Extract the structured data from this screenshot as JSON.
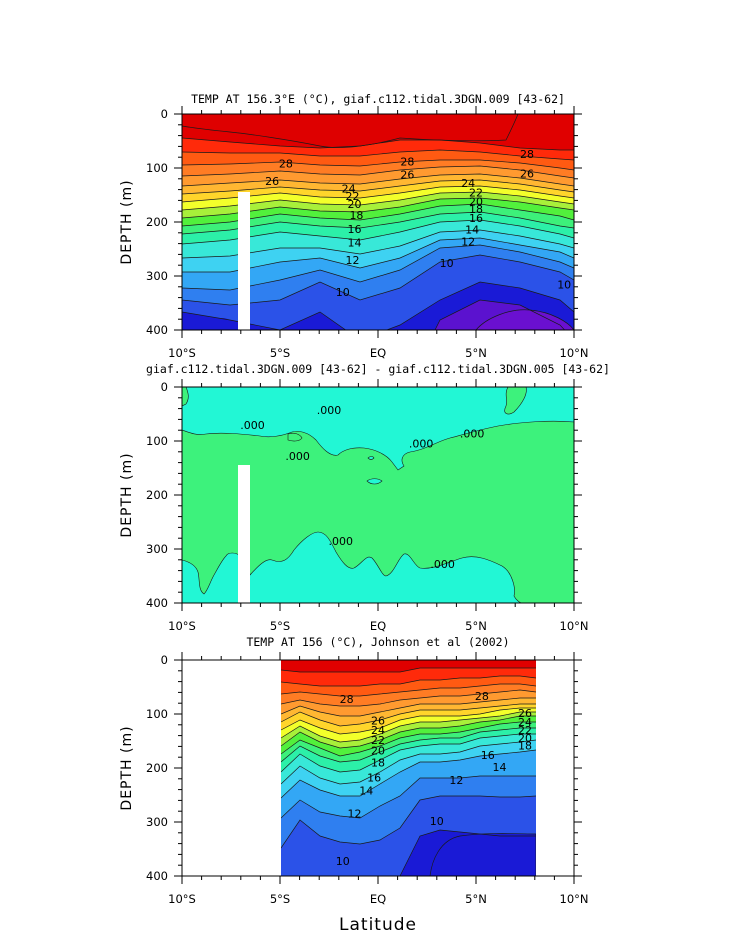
{
  "chart_data": [
    {
      "type": "contour",
      "title": "TEMP AT 156.3°E (°C), giaf.c112.tidal.3DGN.009 [43-62]",
      "ylabel": "DEPTH (m)",
      "xticks": [
        "10°S",
        "5°S",
        "EQ",
        "5°N",
        "10°N"
      ],
      "yticks": [
        "0",
        "100",
        "200",
        "300",
        "400"
      ],
      "xlim": [
        -10,
        10
      ],
      "ylim": [
        0,
        400
      ],
      "contour_labels": [
        {
          "text": "28",
          "lat": -4.7,
          "depth": 92
        },
        {
          "text": "26",
          "lat": -5.4,
          "depth": 124
        },
        {
          "text": "28",
          "lat": 1.5,
          "depth": 88
        },
        {
          "text": "26",
          "lat": 1.5,
          "depth": 112
        },
        {
          "text": "28",
          "lat": 7.6,
          "depth": 74
        },
        {
          "text": "26",
          "lat": 7.6,
          "depth": 110
        },
        {
          "text": "24",
          "lat": -1.5,
          "depth": 138
        },
        {
          "text": "22",
          "lat": -1.3,
          "depth": 152
        },
        {
          "text": "20",
          "lat": -1.2,
          "depth": 167
        },
        {
          "text": "18",
          "lat": -1.1,
          "depth": 187
        },
        {
          "text": "16",
          "lat": -1.2,
          "depth": 213
        },
        {
          "text": "14",
          "lat": -1.2,
          "depth": 238
        },
        {
          "text": "12",
          "lat": -1.3,
          "depth": 270
        },
        {
          "text": "24",
          "lat": 4.6,
          "depth": 128
        },
        {
          "text": "22",
          "lat": 5.0,
          "depth": 145
        },
        {
          "text": "20",
          "lat": 5.0,
          "depth": 162
        },
        {
          "text": "18",
          "lat": 5.0,
          "depth": 176
        },
        {
          "text": "16",
          "lat": 5.0,
          "depth": 193
        },
        {
          "text": "14",
          "lat": 4.8,
          "depth": 214
        },
        {
          "text": "12",
          "lat": 4.6,
          "depth": 236
        },
        {
          "text": "10",
          "lat": 3.5,
          "depth": 276
        },
        {
          "text": "10",
          "lat": -1.8,
          "depth": 330
        },
        {
          "text": "10",
          "lat": 9.5,
          "depth": 316
        }
      ]
    },
    {
      "type": "contour",
      "title": "giaf.c112.tidal.3DGN.009 [43-62] - giaf.c112.tidal.3DGN.005 [43-62]",
      "ylabel": "DEPTH (m)",
      "xticks": [
        "10°S",
        "5°S",
        "EQ",
        "5°N",
        "10°N"
      ],
      "yticks": [
        "0",
        "100",
        "200",
        "300",
        "400"
      ],
      "xlim": [
        -10,
        10
      ],
      "ylim": [
        0,
        400
      ],
      "contour_labels": [
        {
          "text": ".000",
          "lat": -6.4,
          "depth": 70
        },
        {
          "text": ".000",
          "lat": -2.5,
          "depth": 43
        },
        {
          "text": ".000",
          "lat": -4.1,
          "depth": 128
        },
        {
          "text": ".000",
          "lat": 2.2,
          "depth": 105
        },
        {
          "text": ".000",
          "lat": 4.8,
          "depth": 86
        },
        {
          "text": ".000",
          "lat": -1.9,
          "depth": 285
        },
        {
          "text": ".000",
          "lat": 3.3,
          "depth": 328
        }
      ]
    },
    {
      "type": "contour",
      "title": "TEMP AT 156 (°C), Johnson et al (2002)",
      "ylabel": "DEPTH (m)",
      "xlabel": "Latitude",
      "xticks": [
        "10°S",
        "5°S",
        "EQ",
        "5°N",
        "10°N"
      ],
      "yticks": [
        "0",
        "100",
        "200",
        "300",
        "400"
      ],
      "xlim": [
        -10,
        10
      ],
      "ylim": [
        0,
        400
      ],
      "data_range_lat": [
        -5,
        8
      ],
      "contour_labels": [
        {
          "text": "28",
          "lat": -1.6,
          "depth": 72
        },
        {
          "text": "28",
          "lat": 5.3,
          "depth": 67
        },
        {
          "text": "26",
          "lat": 0.0,
          "depth": 112
        },
        {
          "text": "24",
          "lat": 0.0,
          "depth": 130
        },
        {
          "text": "22",
          "lat": 0.0,
          "depth": 148
        },
        {
          "text": "20",
          "lat": 0.0,
          "depth": 168
        },
        {
          "text": "18",
          "lat": 0.0,
          "depth": 190
        },
        {
          "text": "16",
          "lat": -0.2,
          "depth": 218
        },
        {
          "text": "14",
          "lat": -0.6,
          "depth": 242
        },
        {
          "text": "12",
          "lat": -1.2,
          "depth": 284
        },
        {
          "text": "12",
          "lat": 4.0,
          "depth": 222
        },
        {
          "text": "14",
          "lat": 6.2,
          "depth": 198
        },
        {
          "text": "16",
          "lat": 5.6,
          "depth": 176
        },
        {
          "text": "10",
          "lat": 3.0,
          "depth": 298
        },
        {
          "text": "10",
          "lat": -1.8,
          "depth": 372
        },
        {
          "text": "26",
          "lat": 7.5,
          "depth": 98
        },
        {
          "text": "24",
          "lat": 7.5,
          "depth": 115
        },
        {
          "text": "22",
          "lat": 7.5,
          "depth": 130
        },
        {
          "text": "20",
          "lat": 7.5,
          "depth": 144
        },
        {
          "text": "18",
          "lat": 7.5,
          "depth": 158
        }
      ]
    }
  ],
  "colors": {
    "t10": "#5b12cf",
    "t9": "#1a1ad6",
    "t8": "#2b52e8",
    "t7": "#2f7ff0",
    "t6": "#33a7f5",
    "t5": "#3ed2f2",
    "t4": "#38e8d8",
    "t3": "#2cf0a8",
    "t2": "#3df07a",
    "t1": "#52f03c",
    "t0": "#a8f03a",
    "w0": "#f3ff2b",
    "w1": "#ffd52b",
    "w2": "#ffb732",
    "w3": "#ff9a30",
    "w4": "#ff7c24",
    "w5": "#ff5a12",
    "w6": "#ff2a0a",
    "w7": "#e00000",
    "dep": "#f08800",
    "diff_low": "#3df27c",
    "diff_high": "#22f7d5"
  }
}
